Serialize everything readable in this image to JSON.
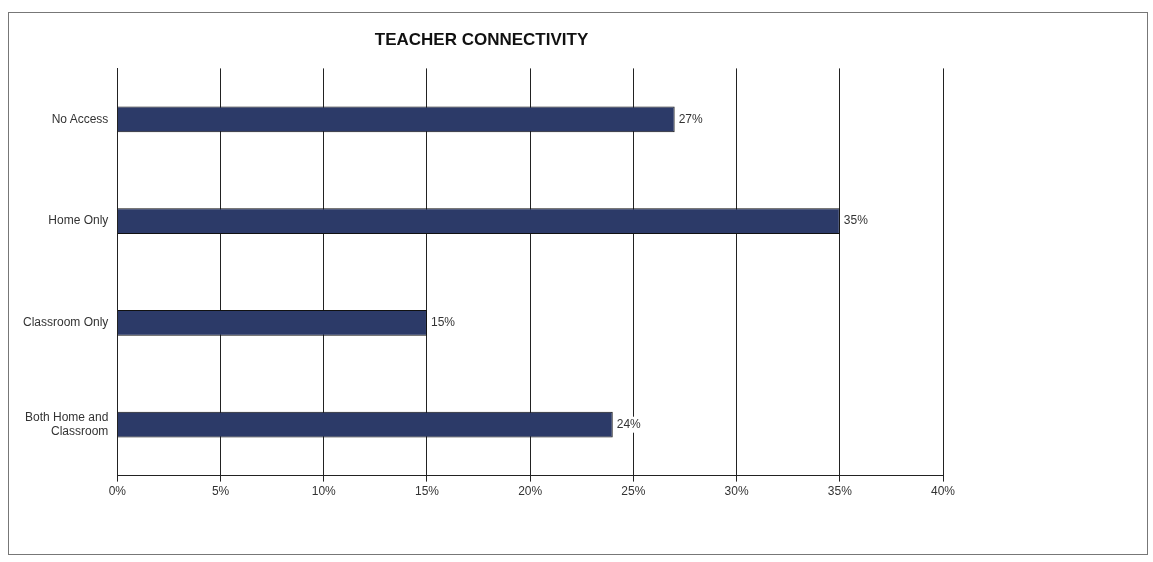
{
  "chart_data": {
    "type": "bar",
    "orientation": "horizontal",
    "title": "TEACHER CONNECTIVITY",
    "categories": [
      "No Access",
      "Home Only",
      "Classroom Only",
      "Both Home and Classroom"
    ],
    "values": [
      27,
      35,
      15,
      24
    ],
    "color": "#2c3a68",
    "value_labels": [
      "27%",
      "35%",
      "15%",
      "24%"
    ],
    "xlim": [
      0,
      40
    ],
    "xticks": [
      {
        "value": 0,
        "label": "0%"
      },
      {
        "value": 5,
        "label": "5%"
      },
      {
        "value": 10,
        "label": "10%"
      },
      {
        "value": 15,
        "label": "15%"
      },
      {
        "value": 20,
        "label": "20%"
      },
      {
        "value": 25,
        "label": "25%"
      },
      {
        "value": 30,
        "label": "30%"
      },
      {
        "value": 35,
        "label": "35%"
      },
      {
        "value": 40,
        "label": "40%"
      }
    ],
    "grid": "x",
    "legend": false
  }
}
